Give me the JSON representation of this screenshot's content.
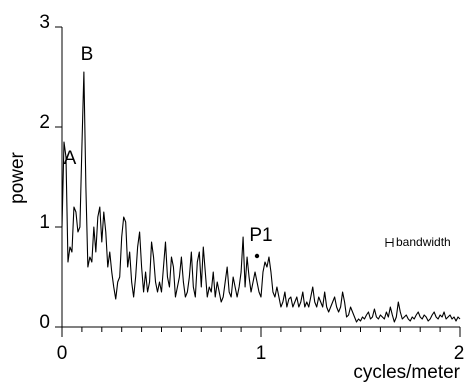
{
  "chart_data": {
    "type": "line",
    "xlabel": "cycles/meter",
    "ylabel": "power",
    "annotations": [
      "A",
      "B",
      "P1",
      "bandwidth"
    ],
    "xlim": [
      0,
      2
    ],
    "xticks": [
      0,
      1,
      2
    ],
    "xminor_ticks": [
      0.1,
      0.2,
      0.3,
      0.4,
      0.5,
      0.6,
      0.7,
      0.8,
      0.9,
      1.1,
      1.2,
      1.3,
      1.4,
      1.5,
      1.6,
      1.7,
      1.8,
      1.9
    ],
    "ylim": [
      0,
      3
    ],
    "yticks": [
      0,
      1,
      2,
      3
    ],
    "x": [
      0,
      0.01,
      0.02,
      0.03,
      0.04,
      0.05,
      0.06,
      0.07,
      0.08,
      0.09,
      0.1,
      0.11,
      0.12,
      0.13,
      0.14,
      0.15,
      0.16,
      0.17,
      0.18,
      0.19,
      0.2,
      0.21,
      0.22,
      0.23,
      0.24,
      0.25,
      0.26,
      0.27,
      0.28,
      0.29,
      0.3,
      0.31,
      0.32,
      0.33,
      0.34,
      0.35,
      0.36,
      0.37,
      0.38,
      0.39,
      0.4,
      0.41,
      0.42,
      0.43,
      0.44,
      0.45,
      0.46,
      0.47,
      0.48,
      0.49,
      0.5,
      0.51,
      0.52,
      0.53,
      0.54,
      0.55,
      0.56,
      0.57,
      0.58,
      0.59,
      0.6,
      0.61,
      0.62,
      0.63,
      0.64,
      0.65,
      0.66,
      0.67,
      0.68,
      0.69,
      0.7,
      0.71,
      0.72,
      0.73,
      0.74,
      0.75,
      0.76,
      0.77,
      0.78,
      0.79,
      0.8,
      0.81,
      0.82,
      0.83,
      0.84,
      0.85,
      0.86,
      0.87,
      0.88,
      0.89,
      0.9,
      0.91,
      0.92,
      0.93,
      0.94,
      0.95,
      0.96,
      0.97,
      0.98,
      0.99,
      1,
      1.01,
      1.02,
      1.03,
      1.04,
      1.05,
      1.06,
      1.07,
      1.08,
      1.09,
      1.1,
      1.11,
      1.12,
      1.13,
      1.14,
      1.15,
      1.16,
      1.17,
      1.18,
      1.19,
      1.2,
      1.21,
      1.22,
      1.23,
      1.24,
      1.25,
      1.26,
      1.27,
      1.28,
      1.29,
      1.3,
      1.31,
      1.32,
      1.33,
      1.34,
      1.35,
      1.36,
      1.37,
      1.38,
      1.39,
      1.4,
      1.41,
      1.42,
      1.43,
      1.44,
      1.45,
      1.46,
      1.47,
      1.48,
      1.49,
      1.5,
      1.51,
      1.52,
      1.53,
      1.54,
      1.55,
      1.56,
      1.57,
      1.58,
      1.59,
      1.6,
      1.61,
      1.62,
      1.63,
      1.64,
      1.65,
      1.66,
      1.67,
      1.68,
      1.69,
      1.7,
      1.71,
      1.72,
      1.73,
      1.74,
      1.75,
      1.76,
      1.77,
      1.78,
      1.79,
      1.8,
      1.81,
      1.82,
      1.83,
      1.84,
      1.85,
      1.86,
      1.87,
      1.88,
      1.89,
      1.9,
      1.91,
      1.92,
      1.93,
      1.94,
      1.95,
      1.96,
      1.97,
      1.98,
      1.99,
      2
    ],
    "series": [
      {
        "color": "#000000",
        "values": [
          1.0,
          1.85,
          1.7,
          0.65,
          0.8,
          0.75,
          1.2,
          1.15,
          0.95,
          1.0,
          1.8,
          2.55,
          1.4,
          0.6,
          0.7,
          0.65,
          1.0,
          0.75,
          1.1,
          1.2,
          0.85,
          1.15,
          0.95,
          0.6,
          0.75,
          0.55,
          0.4,
          0.28,
          0.45,
          0.5,
          0.9,
          1.1,
          1.05,
          0.6,
          0.75,
          0.45,
          0.3,
          0.5,
          0.8,
          0.95,
          0.6,
          0.35,
          0.55,
          0.35,
          0.45,
          0.85,
          0.7,
          0.45,
          0.35,
          0.45,
          0.35,
          0.6,
          0.85,
          0.5,
          0.4,
          0.7,
          0.6,
          0.3,
          0.4,
          0.5,
          0.7,
          0.45,
          0.3,
          0.35,
          0.5,
          0.75,
          0.4,
          0.3,
          0.65,
          0.75,
          0.4,
          0.8,
          0.55,
          0.3,
          0.4,
          0.35,
          0.55,
          0.3,
          0.45,
          0.35,
          0.25,
          0.3,
          0.45,
          0.6,
          0.35,
          0.3,
          0.5,
          0.4,
          0.3,
          0.4,
          0.55,
          0.9,
          0.4,
          0.7,
          0.5,
          0.35,
          0.45,
          0.55,
          0.45,
          0.35,
          0.3,
          0.55,
          0.65,
          0.6,
          0.7,
          0.55,
          0.35,
          0.3,
          0.4,
          0.3,
          0.2,
          0.25,
          0.35,
          0.2,
          0.28,
          0.3,
          0.2,
          0.25,
          0.3,
          0.2,
          0.25,
          0.35,
          0.2,
          0.25,
          0.2,
          0.3,
          0.4,
          0.25,
          0.2,
          0.3,
          0.25,
          0.2,
          0.35,
          0.2,
          0.15,
          0.2,
          0.25,
          0.3,
          0.2,
          0.15,
          0.2,
          0.35,
          0.25,
          0.1,
          0.12,
          0.2,
          0.15,
          0.1,
          0.05,
          0.08,
          0.06,
          0.1,
          0.08,
          0.12,
          0.15,
          0.08,
          0.1,
          0.18,
          0.1,
          0.08,
          0.12,
          0.1,
          0.08,
          0.15,
          0.1,
          0.2,
          0.12,
          0.05,
          0.1,
          0.25,
          0.15,
          0.08,
          0.1,
          0.12,
          0.08,
          0.06,
          0.1,
          0.08,
          0.12,
          0.15,
          0.1,
          0.08,
          0.12,
          0.1,
          0.06,
          0.08,
          0.12,
          0.15,
          0.1,
          0.08,
          0.12,
          0.1,
          0.15,
          0.08,
          0.1,
          0.12,
          0.08,
          0.1,
          0.06,
          0.1,
          0.08
        ]
      }
    ]
  }
}
